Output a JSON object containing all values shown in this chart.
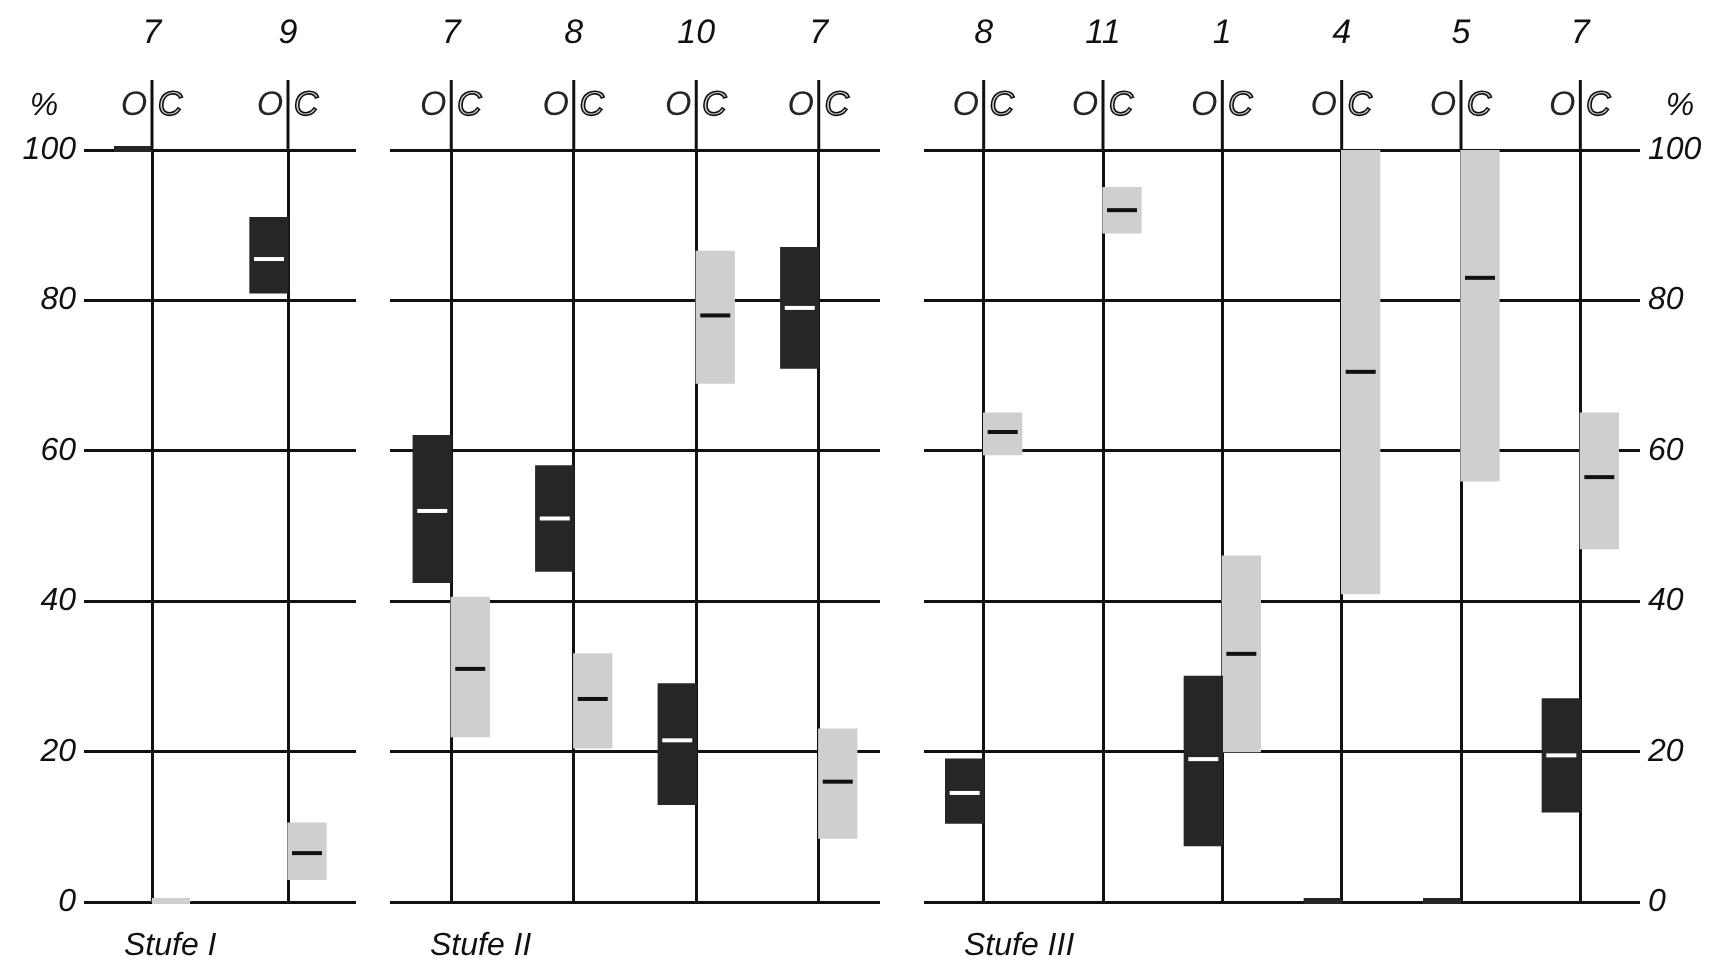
{
  "chart_data": [
    {
      "type": "box",
      "categories": [
        "7",
        "9"
      ],
      "xlabel": "Stufe I",
      "ylabel": "%",
      "ylim": [
        0,
        100
      ],
      "yticks": [
        0,
        20,
        40,
        60,
        80,
        100
      ],
      "grid": true,
      "legend": "top",
      "series": [
        {
          "name": "O",
          "color": "#262626",
          "boxes": [
            {
              "low": 100,
              "q1": 100,
              "median": 100,
              "q3": 100,
              "high": 100
            },
            {
              "low": 81,
              "q1": 81,
              "median": 85.5,
              "q3": 91,
              "high": 91
            }
          ]
        },
        {
          "name": "C",
          "color": "#cfcfcf",
          "boxes": [
            {
              "low": 0,
              "q1": 0,
              "median": 0,
              "q3": 0,
              "high": 0
            },
            {
              "low": 3,
              "q1": 3,
              "median": 6.5,
              "q3": 10.5,
              "high": 10.5
            }
          ]
        }
      ]
    },
    {
      "type": "box",
      "categories": [
        "7",
        "8",
        "10",
        "7"
      ],
      "xlabel": "Stufe II",
      "ylim": [
        0,
        100
      ],
      "yticks": [
        0,
        20,
        40,
        60,
        80,
        100
      ],
      "grid": true,
      "legend": "top",
      "tick_labels": "x",
      "series": [
        {
          "name": "O",
          "color": "#262626",
          "boxes": [
            {
              "low": 42.5,
              "q1": 42.5,
              "median": 52,
              "q3": 62,
              "high": 62
            },
            {
              "low": 44,
              "q1": 44,
              "median": 51,
              "q3": 58,
              "high": 58
            },
            {
              "low": 13,
              "q1": 13,
              "median": 21.5,
              "q3": 29,
              "high": 29
            },
            {
              "low": 71,
              "q1": 71,
              "median": 79,
              "q3": 87,
              "high": 87
            }
          ]
        },
        {
          "name": "C",
          "color": "#cfcfcf",
          "boxes": [
            {
              "low": 22,
              "q1": 22,
              "median": 31,
              "q3": 40.5,
              "high": 40.5
            },
            {
              "low": 20.5,
              "q1": 20.5,
              "median": 27,
              "q3": 33,
              "high": 33
            },
            {
              "low": 69,
              "q1": 69,
              "median": 78,
              "q3": 86.5,
              "high": 86.5
            },
            {
              "low": 8.5,
              "q1": 8.5,
              "median": 16,
              "q3": 23,
              "high": 23
            }
          ]
        }
      ]
    },
    {
      "type": "box",
      "categories": [
        "8",
        "11",
        "1",
        "4",
        "5",
        "7"
      ],
      "xlabel": "Stufe III",
      "y2label": "%",
      "y2lim": [
        0,
        100
      ],
      "y2ticks": [
        0,
        20,
        40,
        60,
        80,
        100
      ],
      "grid": true,
      "legend": "top",
      "series": [
        {
          "name": "O",
          "color": "#262626",
          "axis": "y2",
          "boxes": [
            {
              "low": 10.5,
              "q1": 10.5,
              "median": 14.5,
              "q3": 19,
              "high": 19
            },
            null,
            {
              "low": 7.5,
              "q1": 7.5,
              "median": 19,
              "q3": 30,
              "high": 30
            },
            {
              "low": 0,
              "q1": 0,
              "median": 0,
              "q3": 0,
              "high": 0
            },
            {
              "low": 0,
              "q1": 0,
              "median": 0,
              "q3": 0,
              "high": 0
            },
            {
              "low": 12,
              "q1": 12,
              "median": 19.5,
              "q3": 27,
              "high": 27
            }
          ]
        },
        {
          "name": "C",
          "color": "#cfcfcf",
          "axis": "y2",
          "boxes": [
            {
              "low": 59.5,
              "q1": 59.5,
              "median": 62.5,
              "q3": 65,
              "high": 65
            },
            {
              "low": 89,
              "q1": 89,
              "median": 92,
              "q3": 95,
              "high": 95
            },
            {
              "low": 20,
              "q1": 20,
              "median": 33,
              "q3": 46,
              "high": 46
            },
            {
              "low": 41,
              "q1": 41,
              "median": 70.5,
              "q3": 100,
              "high": 100
            },
            {
              "low": 56,
              "q1": 56,
              "median": 83,
              "q3": 100,
              "high": 100
            },
            {
              "low": 47,
              "q1": 47,
              "median": 56.5,
              "q3": 65,
              "high": 65
            }
          ]
        }
      ]
    }
  ]
}
